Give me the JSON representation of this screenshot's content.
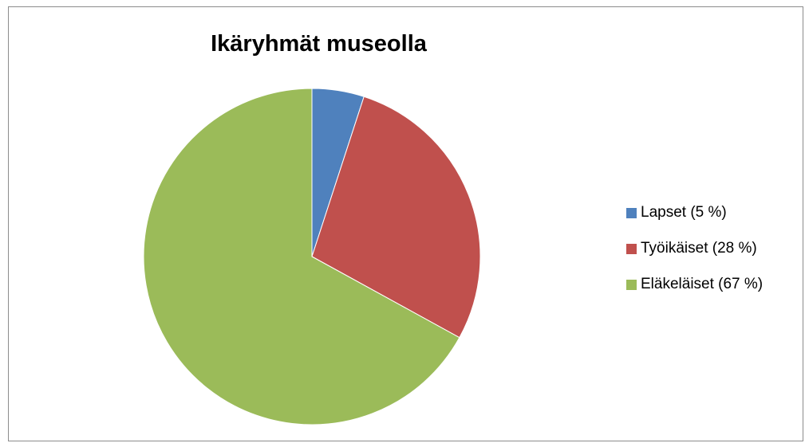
{
  "chart_data": {
    "type": "pie",
    "title": "Ikäryhmät museolla",
    "categories": [
      "Lapset",
      "Työikäiset",
      "Eläkeläiset"
    ],
    "values": [
      5,
      28,
      67
    ],
    "unit": "%",
    "colors": [
      "#4f81bd",
      "#c0504d",
      "#9bbb59"
    ],
    "legend_labels": [
      "Lapset (5 %)",
      "Työikäiset (28 %)",
      "Eläkeläiset (67 %)"
    ],
    "legend_position": "right",
    "start_angle": "12 o'clock",
    "direction": "clockwise"
  }
}
